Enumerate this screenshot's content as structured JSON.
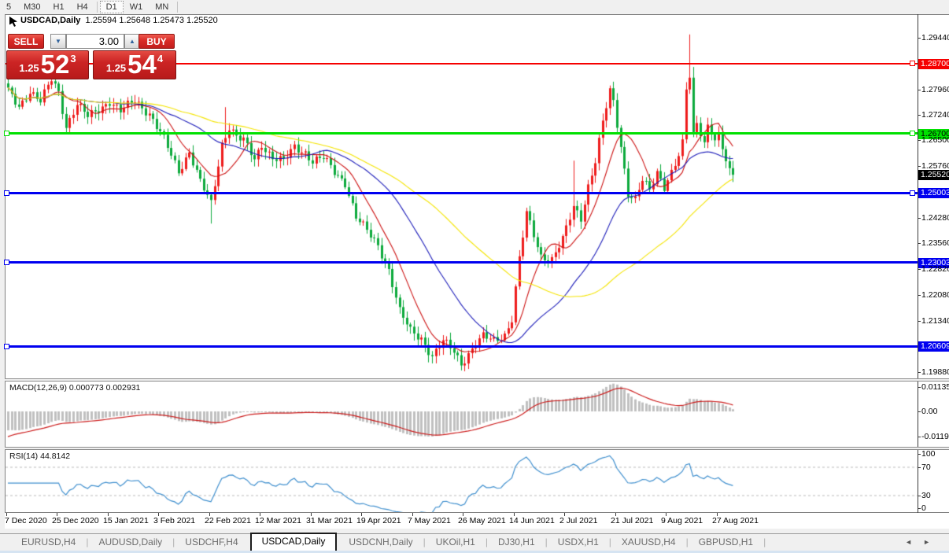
{
  "toolbar": {
    "timeframes": [
      "5",
      "M30",
      "H1",
      "H4",
      "D1",
      "W1",
      "MN"
    ],
    "active": "D1"
  },
  "chart": {
    "symbol_period": "USDCAD,Daily",
    "open": "1.25594",
    "high": "1.25648",
    "low": "1.25473",
    "close": "1.25520"
  },
  "trade_panel": {
    "sell_label": "SELL",
    "buy_label": "BUY",
    "volume": "3.00",
    "sell": {
      "prefix": "1.25",
      "big": "52",
      "sup": "3"
    },
    "buy": {
      "prefix": "1.25",
      "big": "54",
      "sup": "4"
    }
  },
  "icons": {
    "spinner_down": "▼",
    "spinner_up": "▲",
    "tab_scroll_left": "◄",
    "tab_scroll_right": "►"
  },
  "price_axis": {
    "ticks": [
      "1.29440",
      "1.27960",
      "1.27240",
      "1.26500",
      "1.25760",
      "1.24280",
      "1.23560",
      "1.22820",
      "1.22080",
      "1.21340",
      "1.19880"
    ],
    "current": {
      "label": "1.25520",
      "price": 1.2552,
      "bg": "#000000",
      "text": "#ffffff"
    }
  },
  "levels": [
    {
      "price": 1.287,
      "label": "1.28700",
      "color": "#f60000",
      "text": "#ffffff",
      "thickness": 2,
      "left_handle": false,
      "right_handle": true
    },
    {
      "price": 1.267,
      "label": "1.26700",
      "color": "#00e000",
      "text": "#000000",
      "thickness": 3,
      "left_handle": true,
      "right_handle": true
    },
    {
      "price": 1.25003,
      "label": "1.25003",
      "color": "#0000f0",
      "text": "#ffffff",
      "thickness": 3,
      "left_handle": true,
      "right_handle": true
    },
    {
      "price": 1.23003,
      "label": "1.23003",
      "color": "#0000f0",
      "text": "#ffffff",
      "thickness": 3,
      "left_handle": true,
      "right_handle": false
    },
    {
      "price": 1.20609,
      "label": "1.20609",
      "color": "#0000f0",
      "text": "#ffffff",
      "thickness": 3,
      "left_handle": true,
      "right_handle": false
    }
  ],
  "macd_panel": {
    "label": "MACD(12,26,9)",
    "values": "0.000773 0.002931",
    "axis_ticks": [
      "0.01135",
      "0.00",
      "-0.01190"
    ],
    "hist_color": "#c0c0c0",
    "signal_color": "#cc1d1d"
  },
  "rsi_panel": {
    "label": "RSI(14)",
    "value": "44.8142",
    "axis_ticks": [
      100,
      70,
      30,
      0
    ],
    "levels": [
      70,
      30
    ],
    "line_color": "#3f8fce"
  },
  "date_axis": {
    "labels": [
      "7 Dec 2020",
      "25 Dec 2020",
      "15 Jan 2021",
      "3 Feb 2021",
      "22 Feb 2021",
      "12 Mar 2021",
      "31 Mar 2021",
      "19 Apr 2021",
      "7 May 2021",
      "26 May 2021",
      "14 Jun 2021",
      "2 Jul 2021",
      "21 Jul 2021",
      "9 Aug 2021",
      "27 Aug 2021"
    ],
    "candles_per_label": 14
  },
  "tabs": {
    "items": [
      "EURUSD,H4",
      "AUDUSD,Daily",
      "USDCHF,H4",
      "USDCAD,Daily",
      "USDCNH,Daily",
      "UKOil,H1",
      "DJ30,H1",
      "USDX,H1",
      "XAUUSD,H4",
      "GBPUSD,H1"
    ],
    "active": "USDCAD,Daily"
  },
  "chart_data": {
    "type": "candlestick",
    "symbol": "USDCAD",
    "timeframe": "Daily",
    "ohlc_current": {
      "open": 1.25594,
      "high": 1.25648,
      "low": 1.25473,
      "close": 1.2552
    },
    "candle_count": 201,
    "y_axis": {
      "max": 1.30088,
      "min": 1.19693
    },
    "up_color": "#ee1c1c",
    "down_color": "#0caa3c",
    "close_anchors": [
      [
        0,
        1.279
      ],
      [
        3,
        1.2748
      ],
      [
        6,
        1.279
      ],
      [
        9,
        1.276
      ],
      [
        12,
        1.2825
      ],
      [
        14,
        1.279
      ],
      [
        16,
        1.269
      ],
      [
        19,
        1.2752
      ],
      [
        22,
        1.2718
      ],
      [
        25,
        1.274
      ],
      [
        28,
        1.2762
      ],
      [
        31,
        1.2732
      ],
      [
        35,
        1.2766
      ],
      [
        39,
        1.2726
      ],
      [
        43,
        1.2652
      ],
      [
        47,
        1.2562
      ],
      [
        50,
        1.2618
      ],
      [
        53,
        1.253
      ],
      [
        56,
        1.2468
      ],
      [
        59,
        1.264
      ],
      [
        61,
        1.269
      ],
      [
        63,
        1.266
      ],
      [
        65,
        1.2648
      ],
      [
        68,
        1.2596
      ],
      [
        70,
        1.264
      ],
      [
        73,
        1.26
      ],
      [
        76,
        1.259
      ],
      [
        79,
        1.2632
      ],
      [
        82,
        1.2616
      ],
      [
        84,
        1.259
      ],
      [
        87,
        1.26
      ],
      [
        90,
        1.256
      ],
      [
        93,
        1.253
      ],
      [
        96,
        1.243
      ],
      [
        99,
        1.239
      ],
      [
        102,
        1.235
      ],
      [
        105,
        1.228
      ],
      [
        108,
        1.216
      ],
      [
        111,
        1.2105
      ],
      [
        114,
        1.2085
      ],
      [
        117,
        1.2032
      ],
      [
        120,
        1.2074
      ],
      [
        123,
        1.2048
      ],
      [
        125,
        1.2012
      ],
      [
        127,
        1.204
      ],
      [
        129,
        1.2066
      ],
      [
        131,
        1.2088
      ],
      [
        134,
        1.2078
      ],
      [
        137,
        1.2095
      ],
      [
        139,
        1.214
      ],
      [
        141,
        1.231
      ],
      [
        143,
        1.244
      ],
      [
        145,
        1.238
      ],
      [
        147,
        1.232
      ],
      [
        150,
        1.231
      ],
      [
        153,
        1.2365
      ],
      [
        156,
        1.246
      ],
      [
        158,
        1.243
      ],
      [
        160,
        1.252
      ],
      [
        162,
        1.259
      ],
      [
        164,
        1.27
      ],
      [
        166,
        1.279
      ],
      [
        167,
        1.276
      ],
      [
        169,
        1.2635
      ],
      [
        171,
        1.25
      ],
      [
        173,
        1.248
      ],
      [
        175,
        1.2535
      ],
      [
        177,
        1.2505
      ],
      [
        179,
        1.256
      ],
      [
        181,
        1.252
      ],
      [
        183,
        1.256
      ],
      [
        185,
        1.2605
      ],
      [
        186,
        1.265
      ],
      [
        187,
        1.2795
      ],
      [
        188,
        1.283
      ],
      [
        189,
        1.2671
      ],
      [
        190,
        1.27
      ],
      [
        191,
        1.2665
      ],
      [
        192,
        1.2645
      ],
      [
        193,
        1.2695
      ],
      [
        194,
        1.267
      ],
      [
        195,
        1.265
      ],
      [
        196,
        1.267
      ],
      [
        197,
        1.2625
      ],
      [
        198,
        1.259
      ],
      [
        199,
        1.2568
      ],
      [
        200,
        1.2552
      ]
    ],
    "wick_overrides": {
      "12": {
        "high": 1.2832
      },
      "56": {
        "low": 1.2412
      },
      "60": {
        "high": 1.2745
      },
      "125": {
        "low": 1.1992
      },
      "156": {
        "high": 1.2592
      },
      "166": {
        "high": 1.2807
      },
      "188": {
        "high": 1.2953
      },
      "189": {
        "high": 1.286
      }
    },
    "synthesis": {
      "amp1": 0.0009,
      "freq1": 1.93,
      "ph1": 0.7,
      "amp2": 0.0006,
      "freq2": 0.57,
      "ph2": 2.1,
      "damp_from": 185,
      "damp": 0.2
    },
    "moving_averages": [
      {
        "period": 10,
        "color": "#cc1111"
      },
      {
        "period": 30,
        "color": "#1a1ab8"
      },
      {
        "period": 60,
        "color": "#f4e400"
      }
    ],
    "macd": {
      "fast": 12,
      "slow": 26,
      "signal": 9
    },
    "rsi": {
      "period": 14
    }
  }
}
